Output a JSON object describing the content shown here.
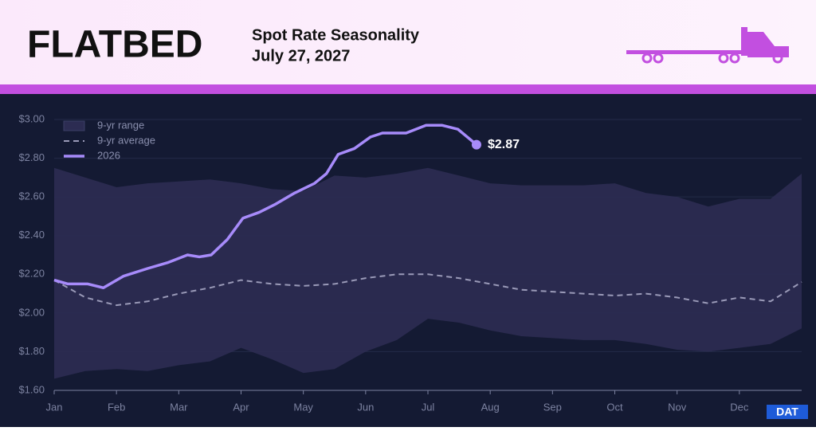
{
  "header": {
    "brand": "FLATBED",
    "title": "Spot Rate Seasonality",
    "date": "July 27, 2027"
  },
  "logo": "DAT",
  "chart_data": {
    "type": "line",
    "xlim": [
      0,
      12
    ],
    "xticks": [
      {
        "value": 0,
        "label": "Jan"
      },
      {
        "value": 1,
        "label": "Feb"
      },
      {
        "value": 2,
        "label": "Mar"
      },
      {
        "value": 3,
        "label": "Apr"
      },
      {
        "value": 4,
        "label": "May"
      },
      {
        "value": 5,
        "label": "Jun"
      },
      {
        "value": 6,
        "label": "Jul"
      },
      {
        "value": 7,
        "label": "Aug"
      },
      {
        "value": 8,
        "label": "Sep"
      },
      {
        "value": 9,
        "label": "Oct"
      },
      {
        "value": 10,
        "label": "Nov"
      },
      {
        "value": 11,
        "label": "Dec"
      }
    ],
    "ylim": [
      1.6,
      3.0
    ],
    "yticks": [
      {
        "value": 1.6,
        "label": "$1.60"
      },
      {
        "value": 1.8,
        "label": "$1.80"
      },
      {
        "value": 2.0,
        "label": "$2.00"
      },
      {
        "value": 2.2,
        "label": "$2.20"
      },
      {
        "value": 2.4,
        "label": "$2.40"
      },
      {
        "value": 2.6,
        "label": "$2.60"
      },
      {
        "value": 2.8,
        "label": "$2.80"
      },
      {
        "value": 3.0,
        "label": "$3.00"
      }
    ],
    "grid": true,
    "x": [
      0,
      0.5,
      1,
      1.5,
      2,
      2.5,
      3,
      3.5,
      4,
      4.5,
      5,
      5.5,
      6,
      6.5,
      7,
      7.5,
      8,
      8.5,
      9,
      9.5,
      10,
      10.5,
      11,
      11.5,
      12
    ],
    "series": [
      {
        "name": "9-yr range",
        "color": "#2c2c52",
        "upper": [
          2.75,
          2.7,
          2.65,
          2.67,
          2.68,
          2.69,
          2.67,
          2.64,
          2.63,
          2.71,
          2.7,
          2.72,
          2.75,
          2.71,
          2.67,
          2.66,
          2.66,
          2.66,
          2.67,
          2.62,
          2.6,
          2.55,
          2.59,
          2.59,
          2.72
        ],
        "lower": [
          1.66,
          1.7,
          1.71,
          1.7,
          1.73,
          1.75,
          1.82,
          1.76,
          1.69,
          1.71,
          1.8,
          1.86,
          1.97,
          1.95,
          1.91,
          1.88,
          1.87,
          1.86,
          1.86,
          1.84,
          1.81,
          1.8,
          1.82,
          1.84,
          1.92
        ]
      },
      {
        "name": "9-yr average",
        "color": "#9a9ab8",
        "values": [
          2.17,
          2.08,
          2.04,
          2.06,
          2.1,
          2.13,
          2.17,
          2.15,
          2.14,
          2.15,
          2.18,
          2.2,
          2.2,
          2.18,
          2.15,
          2.12,
          2.11,
          2.1,
          2.09,
          2.1,
          2.08,
          2.05,
          2.08,
          2.06,
          2.16
        ]
      },
      {
        "name": "2026",
        "color": "#a78bfa",
        "x": [
          0,
          0.22,
          0.54,
          0.79,
          1.11,
          1.5,
          1.82,
          2.14,
          2.33,
          2.52,
          2.78,
          3.03,
          3.29,
          3.54,
          3.86,
          4.18,
          4.37,
          4.56,
          4.82,
          5.08,
          5.27,
          5.65,
          5.97,
          6.23,
          6.48,
          6.78
        ],
        "values": [
          2.17,
          2.15,
          2.15,
          2.13,
          2.19,
          2.23,
          2.26,
          2.3,
          2.29,
          2.3,
          2.38,
          2.49,
          2.52,
          2.56,
          2.62,
          2.67,
          2.72,
          2.82,
          2.85,
          2.91,
          2.93,
          2.93,
          2.97,
          2.97,
          2.95,
          2.87
        ],
        "value_labels": [
          null,
          null,
          null,
          null,
          null,
          null,
          null,
          null,
          null,
          null,
          null,
          null,
          null,
          null,
          null,
          null,
          null,
          null,
          null,
          null,
          null,
          null,
          null,
          null,
          null,
          "$2.87"
        ]
      }
    ]
  }
}
